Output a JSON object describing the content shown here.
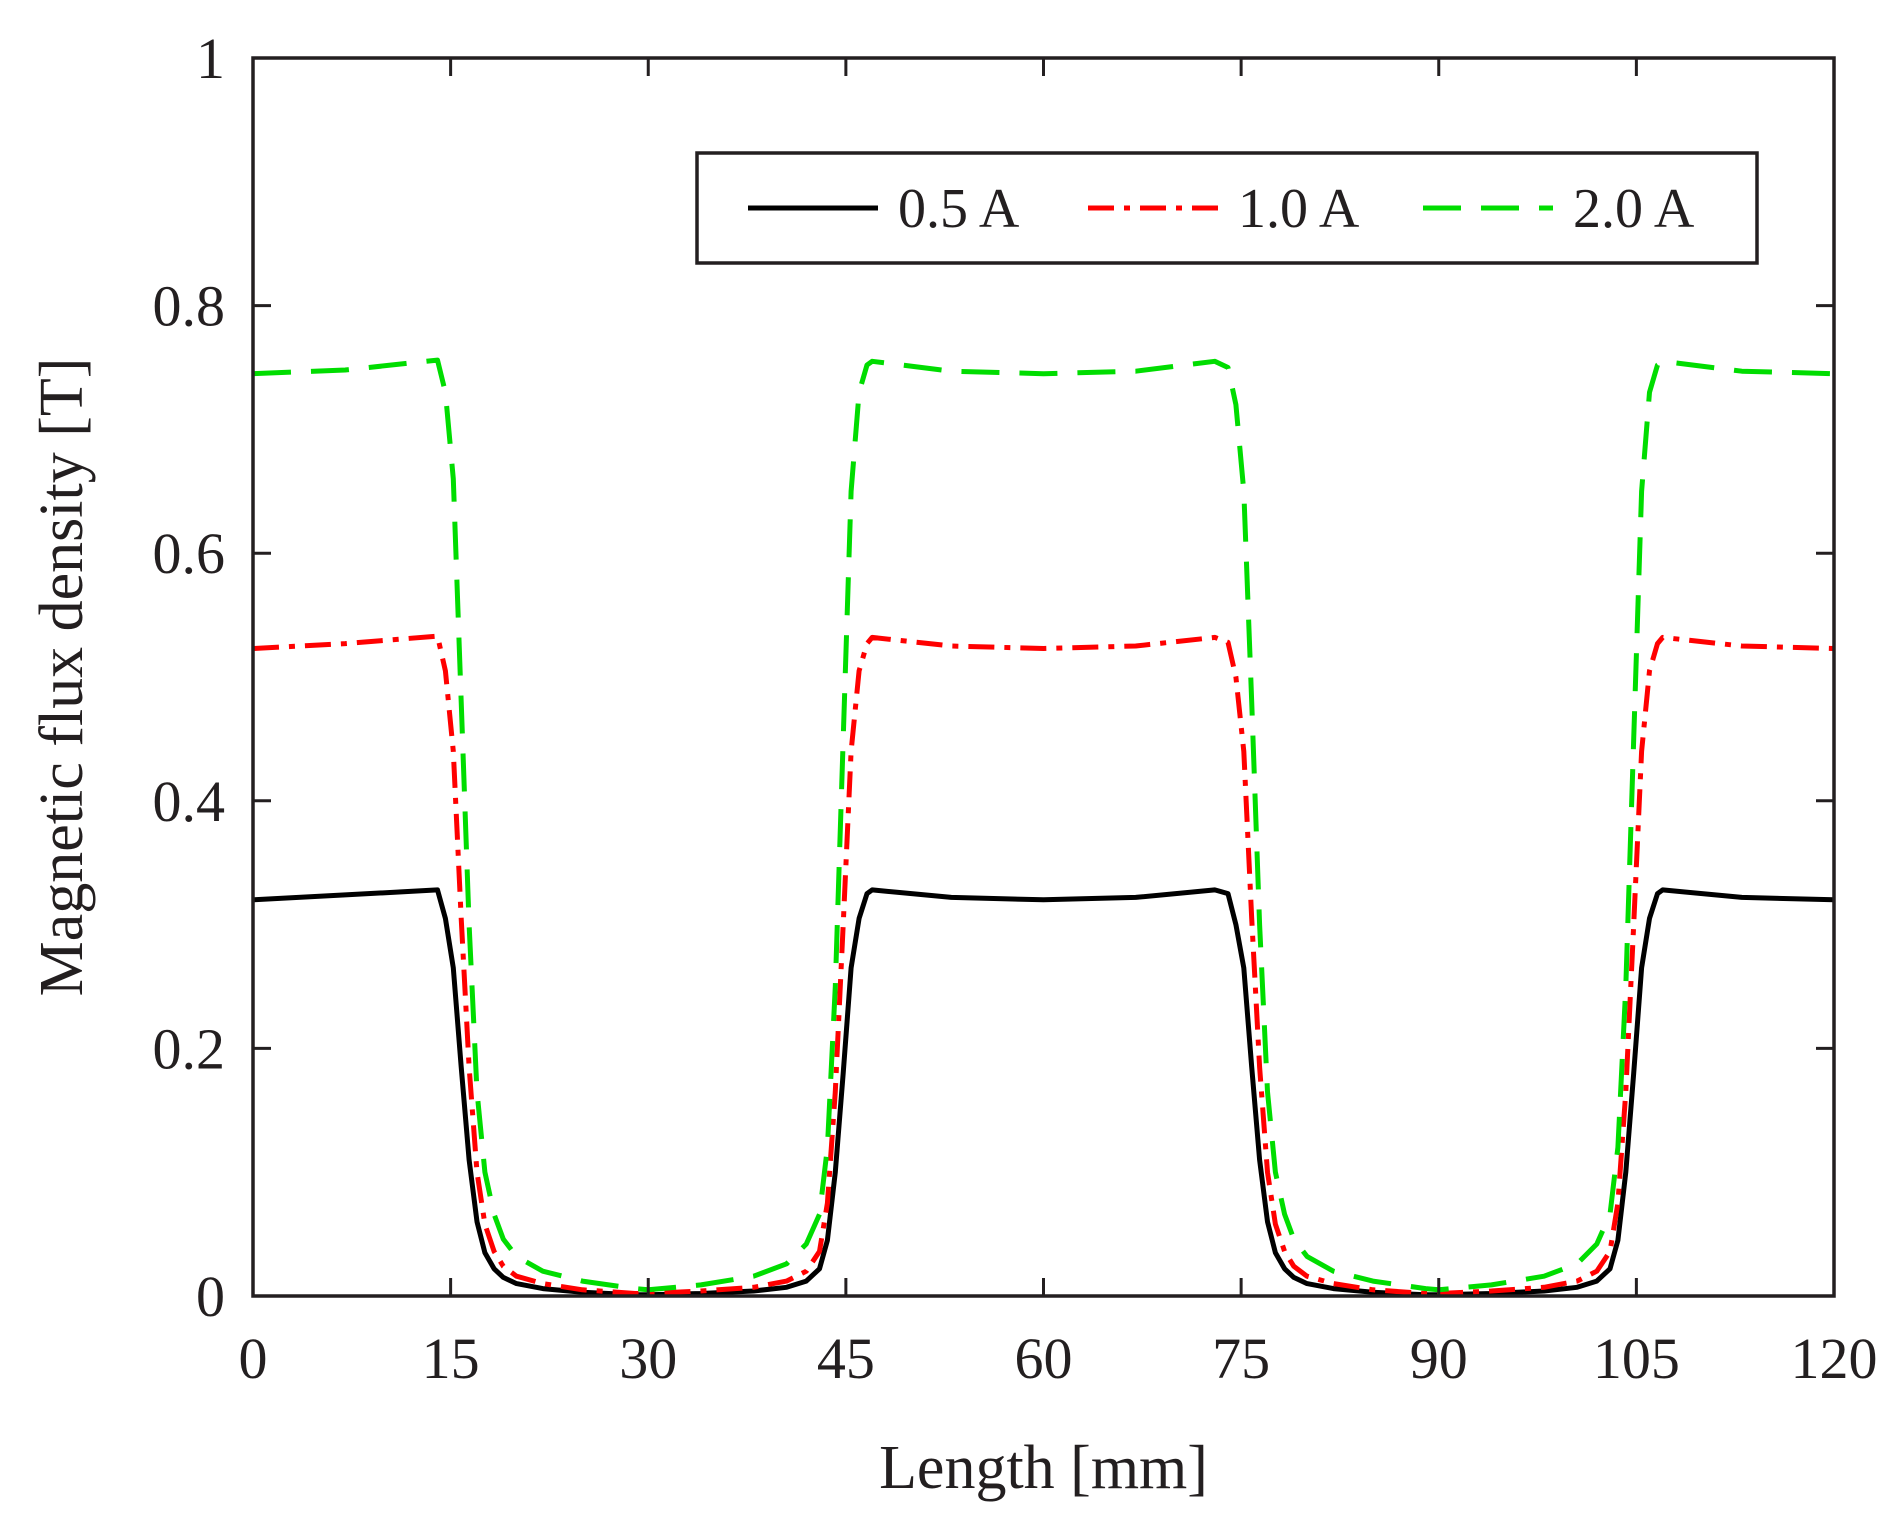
{
  "chart_data": {
    "type": "line",
    "title": "",
    "xlabel": "Length [mm]",
    "ylabel": "Magnetic flux density [T]",
    "xlim": [
      0,
      120
    ],
    "ylim": [
      0,
      1
    ],
    "xticks": [
      0,
      15,
      30,
      45,
      60,
      75,
      90,
      105,
      120
    ],
    "xtick_labels": [
      "0",
      "15",
      "30",
      "45",
      "60",
      "75",
      "90",
      "105",
      "120"
    ],
    "yticks": [
      0,
      0.2,
      0.4,
      0.6,
      0.8,
      1
    ],
    "ytick_labels": [
      "0",
      "0.2",
      "0.4",
      "0.6",
      "0.8",
      "1"
    ],
    "grid": false,
    "legend_position": "top-right",
    "series": [
      {
        "name": "0.5 A",
        "color": "#000000",
        "dash": "solid",
        "x": [
          0,
          7,
          14,
          14.6,
          15.2,
          15.8,
          16.4,
          17,
          17.6,
          18.3,
          19,
          20,
          22,
          25,
          29,
          30,
          34,
          38,
          40.5,
          42,
          43,
          43.6,
          44.2,
          44.8,
          45.4,
          46,
          46.6,
          47,
          53,
          60,
          67,
          73,
          74,
          74.6,
          75.2,
          75.8,
          76.4,
          77,
          77.6,
          78.3,
          79,
          80,
          82,
          85,
          89,
          90,
          94,
          98,
          100.5,
          102,
          103,
          103.6,
          104.2,
          104.8,
          105.4,
          106,
          106.6,
          107,
          113,
          120
        ],
        "y": [
          0.32,
          0.324,
          0.328,
          0.305,
          0.265,
          0.185,
          0.11,
          0.06,
          0.035,
          0.022,
          0.015,
          0.01,
          0.006,
          0.003,
          0.001,
          0.001,
          0.002,
          0.004,
          0.007,
          0.012,
          0.022,
          0.045,
          0.1,
          0.18,
          0.265,
          0.305,
          0.325,
          0.328,
          0.322,
          0.32,
          0.322,
          0.328,
          0.325,
          0.3,
          0.265,
          0.185,
          0.11,
          0.06,
          0.035,
          0.022,
          0.015,
          0.01,
          0.006,
          0.003,
          0.001,
          0.001,
          0.002,
          0.004,
          0.007,
          0.012,
          0.022,
          0.045,
          0.1,
          0.18,
          0.265,
          0.305,
          0.325,
          0.328,
          0.322,
          0.32
        ]
      },
      {
        "name": "1.0 A",
        "color": "#ff0000",
        "dash": "dash-dot",
        "x": [
          0,
          7,
          14,
          14.6,
          15.2,
          15.8,
          16.4,
          17,
          17.6,
          18.3,
          19,
          20,
          22,
          25,
          29,
          30,
          34,
          38,
          40.5,
          42,
          43,
          43.6,
          44.2,
          44.8,
          45.4,
          46,
          46.6,
          47,
          53,
          60,
          67,
          73,
          74,
          74.6,
          75.2,
          75.8,
          76.4,
          77,
          77.6,
          78.3,
          79,
          80,
          82,
          85,
          89,
          90,
          94,
          98,
          100.5,
          102,
          103,
          103.6,
          104.2,
          104.8,
          105.4,
          106,
          106.6,
          107,
          113,
          120
        ],
        "y": [
          0.523,
          0.527,
          0.533,
          0.505,
          0.44,
          0.305,
          0.185,
          0.1,
          0.058,
          0.036,
          0.024,
          0.016,
          0.01,
          0.005,
          0.002,
          0.002,
          0.004,
          0.007,
          0.012,
          0.02,
          0.036,
          0.075,
          0.165,
          0.3,
          0.44,
          0.505,
          0.527,
          0.532,
          0.525,
          0.523,
          0.525,
          0.532,
          0.528,
          0.5,
          0.44,
          0.305,
          0.185,
          0.1,
          0.058,
          0.036,
          0.024,
          0.016,
          0.01,
          0.005,
          0.002,
          0.002,
          0.004,
          0.007,
          0.012,
          0.02,
          0.036,
          0.075,
          0.165,
          0.3,
          0.44,
          0.505,
          0.527,
          0.532,
          0.525,
          0.523
        ]
      },
      {
        "name": "2.0 A",
        "color": "#00dd00",
        "dash": "dashed",
        "x": [
          0,
          7,
          14,
          14.6,
          15.2,
          15.8,
          16.4,
          17,
          17.6,
          18.3,
          19,
          20,
          22,
          25,
          29,
          30,
          34,
          38,
          40.5,
          42,
          43,
          43.6,
          44.2,
          44.8,
          45.4,
          46,
          46.6,
          47,
          53,
          60,
          67,
          73,
          74,
          74.6,
          75.2,
          75.8,
          76.4,
          77,
          77.6,
          78.3,
          79,
          80,
          82,
          85,
          89,
          90,
          94,
          98,
          100.5,
          102,
          103,
          103.6,
          104.2,
          104.8,
          105.4,
          106,
          106.6,
          107,
          113,
          120
        ],
        "y": [
          0.745,
          0.748,
          0.756,
          0.73,
          0.66,
          0.48,
          0.3,
          0.165,
          0.1,
          0.066,
          0.046,
          0.032,
          0.02,
          0.012,
          0.006,
          0.005,
          0.009,
          0.016,
          0.026,
          0.042,
          0.066,
          0.12,
          0.25,
          0.45,
          0.65,
          0.73,
          0.752,
          0.755,
          0.747,
          0.745,
          0.747,
          0.755,
          0.75,
          0.72,
          0.65,
          0.48,
          0.3,
          0.165,
          0.1,
          0.066,
          0.046,
          0.032,
          0.02,
          0.012,
          0.006,
          0.005,
          0.009,
          0.016,
          0.026,
          0.042,
          0.066,
          0.12,
          0.25,
          0.45,
          0.65,
          0.73,
          0.752,
          0.755,
          0.747,
          0.745
        ]
      }
    ]
  }
}
